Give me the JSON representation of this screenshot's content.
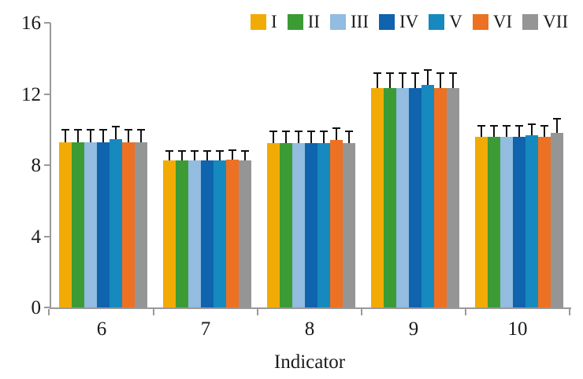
{
  "figure": {
    "x_axis_title": "Indicator"
  },
  "chart_data": {
    "type": "bar",
    "title": "",
    "xlabel": "Indicator",
    "ylabel": "",
    "categories": [
      "6",
      "7",
      "8",
      "9",
      "10"
    ],
    "ylim": [
      0,
      16
    ],
    "yticks": [
      "0",
      "4",
      "8",
      "12",
      "16"
    ],
    "grid": false,
    "legend_position": "top",
    "error_bars": "upper-only, black T-caps",
    "axis_color": "#999999",
    "series": [
      {
        "name": "I",
        "color": "#F2AB04",
        "values": [
          9.3,
          8.25,
          9.25,
          12.35,
          9.6
        ],
        "errors": [
          0.75,
          0.6,
          0.7,
          0.85,
          0.65
        ]
      },
      {
        "name": "II",
        "color": "#3C9B35",
        "values": [
          9.3,
          8.25,
          9.25,
          12.35,
          9.6
        ],
        "errors": [
          0.75,
          0.6,
          0.7,
          0.85,
          0.65
        ]
      },
      {
        "name": "III",
        "color": "#92BCE0",
        "values": [
          9.3,
          8.25,
          9.25,
          12.35,
          9.6
        ],
        "errors": [
          0.75,
          0.6,
          0.7,
          0.85,
          0.65
        ]
      },
      {
        "name": "IV",
        "color": "#1063AD",
        "values": [
          9.3,
          8.25,
          9.25,
          12.35,
          9.6
        ],
        "errors": [
          0.75,
          0.6,
          0.7,
          0.85,
          0.65
        ]
      },
      {
        "name": "V",
        "color": "#1689BF",
        "values": [
          9.45,
          8.25,
          9.25,
          12.5,
          9.7
        ],
        "errors": [
          0.75,
          0.6,
          0.7,
          0.9,
          0.65
        ]
      },
      {
        "name": "VI",
        "color": "#EC7123",
        "values": [
          9.3,
          8.3,
          9.4,
          12.35,
          9.6
        ],
        "errors": [
          0.75,
          0.6,
          0.7,
          0.85,
          0.65
        ]
      },
      {
        "name": "VII",
        "color": "#959595",
        "values": [
          9.3,
          8.25,
          9.25,
          12.35,
          9.8
        ],
        "errors": [
          0.75,
          0.6,
          0.7,
          0.85,
          0.85
        ]
      }
    ]
  }
}
